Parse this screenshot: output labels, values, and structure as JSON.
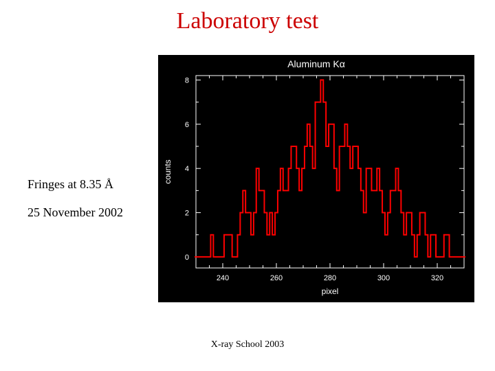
{
  "title": "Laboratory test",
  "caption_line1": "Fringes at 8.35 Å",
  "caption_line2": "25 November 2002",
  "footer": "X-ray School 2003",
  "chart": {
    "type": "step-histogram",
    "chart_title": "Aluminum Kα",
    "xlabel": "pixel",
    "ylabel": "counts",
    "background_color": "#000000",
    "axis_color": "#ffffff",
    "line_color": "#ff0000",
    "line_width": 2,
    "title_color": "#ffffff",
    "label_color": "#ffffff",
    "tick_color": "#ffffff",
    "title_fontsize": 14,
    "label_fontsize": 12,
    "tick_fontsize": 11,
    "xlim": [
      230,
      330
    ],
    "ylim": [
      -0.5,
      8.2
    ],
    "xticks": [
      240,
      260,
      280,
      300,
      320
    ],
    "yticks": [
      0,
      2,
      4,
      6,
      8
    ],
    "xtick_minor_step": 5,
    "ytick_minor_step": 1,
    "x": [
      230,
      231,
      232,
      233,
      234,
      235,
      236,
      237,
      238,
      239,
      240,
      241,
      242,
      243,
      244,
      245,
      246,
      247,
      248,
      249,
      250,
      251,
      252,
      253,
      254,
      255,
      256,
      257,
      258,
      259,
      260,
      261,
      262,
      263,
      264,
      265,
      266,
      267,
      268,
      269,
      270,
      271,
      272,
      273,
      274,
      275,
      276,
      277,
      278,
      279,
      280,
      281,
      282,
      283,
      284,
      285,
      286,
      287,
      288,
      289,
      290,
      291,
      292,
      293,
      294,
      295,
      296,
      297,
      298,
      299,
      300,
      301,
      302,
      303,
      304,
      305,
      306,
      307,
      308,
      309,
      310,
      311,
      312,
      313,
      314,
      315,
      316,
      317,
      318,
      319,
      320,
      321,
      322,
      323,
      324,
      325,
      326,
      327,
      328,
      329,
      330
    ],
    "y": [
      0,
      0,
      0,
      0,
      0,
      0,
      1,
      0,
      0,
      0,
      0,
      1,
      1,
      1,
      0,
      0,
      1,
      2,
      3,
      2,
      2,
      1,
      2,
      4,
      3,
      3,
      2,
      1,
      2,
      1,
      2,
      3,
      4,
      3,
      3,
      4,
      5,
      5,
      4,
      3,
      4,
      5,
      6,
      5,
      4,
      7,
      7,
      8,
      7,
      5,
      6,
      6,
      4,
      3,
      5,
      5,
      6,
      5,
      4,
      5,
      5,
      4,
      3,
      2,
      4,
      4,
      3,
      3,
      4,
      3,
      2,
      1,
      2,
      3,
      3,
      4,
      3,
      2,
      1,
      2,
      2,
      1,
      0,
      1,
      2,
      2,
      1,
      0,
      1,
      1,
      0,
      0,
      0,
      1,
      1,
      0,
      0,
      0,
      0,
      0,
      0
    ]
  }
}
